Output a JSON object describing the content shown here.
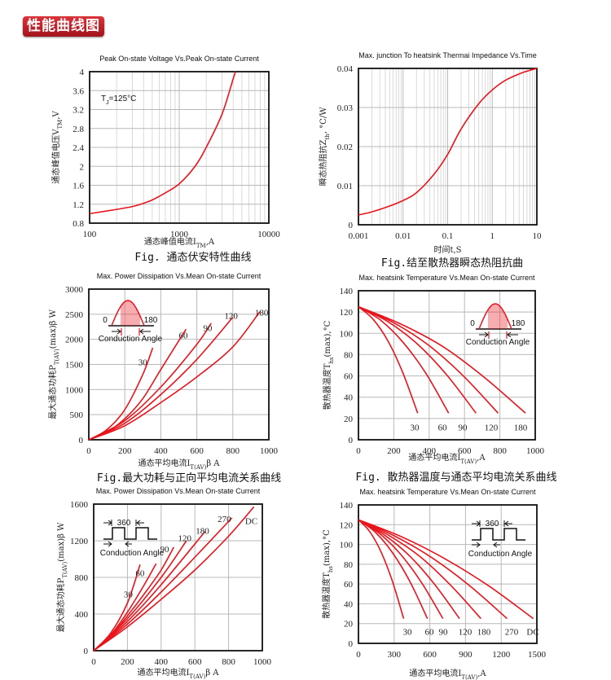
{
  "header": {
    "title": "性能曲线图"
  },
  "colors": {
    "curve": "#e8141c",
    "grid": "#b8b8b8",
    "badge": "#c0222a"
  },
  "chart_data": [
    {
      "type": "line",
      "title": "Peak On-state Voltage Vs.Peak On-state Current",
      "ylabel": {
        "main": "通态峰值电压V",
        "sub": "TM",
        "tail": ",V"
      },
      "xlabel": {
        "main": "通态峰值电流I",
        "sub": "TM",
        "tail": ",A"
      },
      "caption": "Fig. 通态伏安特性曲线",
      "annotation": {
        "main": "T",
        "sub": "J",
        "tail": "=125°C"
      },
      "xscale": "log",
      "xlim": [
        100,
        10000
      ],
      "ylim": [
        0.8,
        4
      ],
      "xticks": [
        "100",
        "1000",
        "10000"
      ],
      "yticks": [
        "0.8",
        "1.2",
        "1.6",
        "2",
        "2.4",
        "2.8",
        "3.2",
        "3.6",
        "4"
      ],
      "series": [
        {
          "name": "Tj=125°C",
          "label": "",
          "points": [
            [
              100,
              1.0
            ],
            [
              200,
              1.09
            ],
            [
              300,
              1.15
            ],
            [
              400,
              1.22
            ],
            [
              500,
              1.29
            ],
            [
              700,
              1.44
            ],
            [
              1000,
              1.63
            ],
            [
              1500,
              2.0
            ],
            [
              2000,
              2.4
            ],
            [
              3000,
              3.1
            ],
            [
              4000,
              3.85
            ],
            [
              4250,
              4.0
            ]
          ]
        }
      ]
    },
    {
      "type": "line",
      "title": "Max. junction To heatsink Thermai Impedance Vs.Time",
      "ylabel": {
        "main": "瞬态热阻抗Z",
        "sub": "th",
        "tail": ", °C/W"
      },
      "xlabel": {
        "main": "时间t,S",
        "sub": "",
        "tail": ""
      },
      "caption": "Fig.结至散热器瞬态热阻抗曲",
      "xscale": "log",
      "xlim": [
        0.001,
        10
      ],
      "ylim": [
        0,
        0.04
      ],
      "xticks": [
        "0.001",
        "0.01",
        "0.1",
        "1",
        "10"
      ],
      "yticks": [
        "0",
        "0.01",
        "0.02",
        "0.03",
        "0.04"
      ],
      "series": [
        {
          "name": "Zth",
          "label": "",
          "points": [
            [
              0.001,
              0.0025
            ],
            [
              0.002,
              0.0033
            ],
            [
              0.005,
              0.0048
            ],
            [
              0.01,
              0.0062
            ],
            [
              0.02,
              0.0082
            ],
            [
              0.05,
              0.013
            ],
            [
              0.1,
              0.018
            ],
            [
              0.2,
              0.0245
            ],
            [
              0.5,
              0.031
            ],
            [
              1,
              0.0345
            ],
            [
              2,
              0.037
            ],
            [
              5,
              0.039
            ],
            [
              10,
              0.04
            ]
          ]
        }
      ]
    },
    {
      "type": "line",
      "title": "Max. Power Dissipation Vs.Mean On-state Current",
      "ylabel": {
        "main": "最大通态功耗P",
        "sub": "T(AV)",
        "tail": "(max)β W"
      },
      "xlabel": {
        "main": "通态平均电流I",
        "sub": "T(AV)",
        "tail": "β A"
      },
      "caption": "Fig.最大功耗与正向平均电流关系曲线",
      "inset": {
        "kind": "sine",
        "left": "0",
        "right": "180",
        "text": "Conduction Angle"
      },
      "xscale": "linear",
      "xlim": [
        0,
        1000
      ],
      "ylim": [
        0,
        3000
      ],
      "xticks": [
        "0",
        "200",
        "400",
        "600",
        "800",
        "1000"
      ],
      "yticks": [
        "0",
        "500",
        "1000",
        "1500",
        "2000",
        "2500",
        "3000"
      ],
      "series": [
        {
          "name": "30",
          "label": "30",
          "label_at": [
            300,
            1550
          ],
          "points": [
            [
              0,
              0
            ],
            [
              100,
              200
            ],
            [
              200,
              600
            ],
            [
              300,
              1300
            ],
            [
              355,
              1830
            ]
          ]
        },
        {
          "name": "60",
          "label": "60",
          "label_at": [
            525,
            2080
          ],
          "points": [
            [
              0,
              0
            ],
            [
              100,
              150
            ],
            [
              200,
              420
            ],
            [
              300,
              820
            ],
            [
              400,
              1400
            ],
            [
              540,
              2200
            ]
          ]
        },
        {
          "name": "90",
          "label": "90",
          "label_at": [
            660,
            2230
          ],
          "points": [
            [
              0,
              0
            ],
            [
              200,
              380
            ],
            [
              400,
              1050
            ],
            [
              600,
              1900
            ],
            [
              680,
              2320
            ]
          ]
        },
        {
          "name": "120",
          "label": "120",
          "label_at": [
            790,
            2470
          ],
          "points": [
            [
              0,
              0
            ],
            [
              200,
              330
            ],
            [
              400,
              900
            ],
            [
              600,
              1600
            ],
            [
              800,
              2440
            ]
          ]
        },
        {
          "name": "180",
          "label": "180",
          "label_at": [
            960,
            2540
          ],
          "points": [
            [
              0,
              0
            ],
            [
              200,
              280
            ],
            [
              400,
              740
            ],
            [
              600,
              1250
            ],
            [
              800,
              1850
            ],
            [
              950,
              2550
            ]
          ]
        }
      ]
    },
    {
      "type": "line",
      "title": "Max. heatsink Temperature Vs.Mean On-state Current",
      "ylabel": {
        "main": "散热器温度T",
        "sub": "hs",
        "tail": "(max),°C"
      },
      "xlabel": {
        "main": "通态平均电流I",
        "sub": "T(AV)",
        "tail": ",A"
      },
      "caption": "Fig. 散热器温度与通态平均电流关系曲线",
      "inset": {
        "kind": "sine",
        "left": "0",
        "right": "180",
        "text": "Conduction Angle"
      },
      "xscale": "linear",
      "xlim": [
        0,
        1000
      ],
      "ylim": [
        0,
        140
      ],
      "xticks": [
        "0",
        "200",
        "400",
        "600",
        "800",
        "1000"
      ],
      "yticks": [
        "0",
        "20",
        "40",
        "60",
        "80",
        "100",
        "120",
        "140"
      ],
      "series": [
        {
          "name": "30",
          "label": "30",
          "label_at": [
            318,
            12
          ],
          "points": [
            [
              0,
              125
            ],
            [
              84,
              113
            ],
            [
              168,
              92.5
            ],
            [
              251,
              63
            ],
            [
              335,
              25
            ]
          ]
        },
        {
          "name": "60",
          "label": "60",
          "label_at": [
            475,
            12
          ],
          "points": [
            [
              0,
              125
            ],
            [
              128,
              112
            ],
            [
              255,
              91
            ],
            [
              383,
              62
            ],
            [
              510,
              25
            ]
          ]
        },
        {
          "name": "90",
          "label": "90",
          "label_at": [
            590,
            12
          ],
          "points": [
            [
              0,
              125
            ],
            [
              166,
              111
            ],
            [
              333,
              90
            ],
            [
              499,
              61
            ],
            [
              665,
              25
            ]
          ]
        },
        {
          "name": "120",
          "label": "120",
          "label_at": [
            751,
            12
          ],
          "points": [
            [
              0,
              125
            ],
            [
              198,
              110
            ],
            [
              395,
              89
            ],
            [
              593,
              60
            ],
            [
              790,
              25
            ]
          ]
        },
        {
          "name": "180",
          "label": "180",
          "label_at": [
            917,
            12
          ],
          "points": [
            [
              0,
              125
            ],
            [
              236,
              109
            ],
            [
              473,
              88
            ],
            [
              709,
              59
            ],
            [
              945,
              25
            ]
          ]
        }
      ]
    },
    {
      "type": "line",
      "title": "Max. Power Dissipation Vs.Mean On-state Current",
      "ylabel": {
        "main": "最大通态功耗P",
        "sub": "T(AV)",
        "tail": "(max)β W"
      },
      "xlabel": {
        "main": "通态平均电流I",
        "sub": "T(AV)",
        "tail": "β A"
      },
      "inset": {
        "kind": "square",
        "top": "360",
        "text": "Conduction Angle"
      },
      "xscale": "linear",
      "xlim": [
        0,
        1000
      ],
      "ylim": [
        0,
        1600
      ],
      "xticks": [
        "0",
        "200",
        "400",
        "600",
        "800",
        "1000"
      ],
      "yticks": [
        "0",
        "400",
        "800",
        "1200",
        "1600"
      ],
      "series": [
        {
          "name": "30",
          "label": "30",
          "label_at": [
            205,
            620
          ],
          "points": [
            [
              0,
              0
            ],
            [
              100,
              190
            ],
            [
              200,
              520
            ],
            [
              275,
              940
            ]
          ]
        },
        {
          "name": "60",
          "label": "60",
          "label_at": [
            275,
            850
          ],
          "points": [
            [
              0,
              0
            ],
            [
              100,
              170
            ],
            [
              200,
              420
            ],
            [
              300,
              720
            ],
            [
              370,
              950
            ]
          ]
        },
        {
          "name": "90",
          "label": "90",
          "label_at": [
            420,
            1110
          ],
          "points": [
            [
              0,
              0
            ],
            [
              100,
              160
            ],
            [
              200,
              380
            ],
            [
              300,
              620
            ],
            [
              400,
              880
            ],
            [
              475,
              1130
            ]
          ]
        },
        {
          "name": "120",
          "label": "120",
          "label_at": [
            540,
            1230
          ],
          "points": [
            [
              0,
              0
            ],
            [
              200,
              350
            ],
            [
              400,
              800
            ],
            [
              550,
              1200
            ]
          ]
        },
        {
          "name": "180",
          "label": "180",
          "label_at": [
            645,
            1310
          ],
          "points": [
            [
              0,
              0
            ],
            [
              200,
              320
            ],
            [
              400,
              720
            ],
            [
              660,
              1300
            ]
          ]
        },
        {
          "name": "270",
          "label": "270",
          "label_at": [
            775,
            1440
          ],
          "points": [
            [
              0,
              0
            ],
            [
              200,
              290
            ],
            [
              400,
              640
            ],
            [
              600,
              1020
            ],
            [
              820,
              1450
            ]
          ]
        },
        {
          "name": "DC",
          "label": "DC",
          "label_at": [
            935,
            1420
          ],
          "points": [
            [
              0,
              0
            ],
            [
              200,
              260
            ],
            [
              400,
              560
            ],
            [
              600,
              880
            ],
            [
              800,
              1250
            ],
            [
              950,
              1570
            ]
          ]
        }
      ]
    },
    {
      "type": "line",
      "title": "Max. heatsink Temperature Vs.Mean On-state Current",
      "ylabel": {
        "main": "散热器温度T",
        "sub": "hs",
        "tail": "(max),°C"
      },
      "xlabel": {
        "main": "通态平均电流I",
        "sub": "T(AV)",
        "tail": ",A"
      },
      "inset": {
        "kind": "square",
        "top": "360",
        "text": "Conduction Angle"
      },
      "xscale": "linear",
      "xlim": [
        0,
        1500
      ],
      "ylim": [
        0,
        140
      ],
      "xticks": [
        "0",
        "300",
        "600",
        "900",
        "1200",
        "1500"
      ],
      "yticks": [
        "0",
        "20",
        "40",
        "60",
        "80",
        "100",
        "120",
        "140"
      ],
      "series": [
        {
          "name": "30",
          "label": "30",
          "label_at": [
            411,
            12
          ],
          "points": [
            [
              0,
              125
            ],
            [
              95,
              113
            ],
            [
              190,
              92.5
            ],
            [
              285,
              63
            ],
            [
              380,
              25
            ]
          ]
        },
        {
          "name": "60",
          "label": "60",
          "label_at": [
            596,
            12
          ],
          "points": [
            [
              0,
              125
            ],
            [
              145,
              112
            ],
            [
              290,
              91
            ],
            [
              435,
              62
            ],
            [
              580,
              25
            ]
          ]
        },
        {
          "name": "90",
          "label": "90",
          "label_at": [
            712,
            12
          ],
          "points": [
            [
              0,
              125
            ],
            [
              178,
              111
            ],
            [
              355,
              90
            ],
            [
              533,
              61
            ],
            [
              710,
              25
            ]
          ]
        },
        {
          "name": "120",
          "label": "120",
          "label_at": [
            897,
            12
          ],
          "points": [
            [
              0,
              125
            ],
            [
              213,
              110
            ],
            [
              425,
              89
            ],
            [
              638,
              60
            ],
            [
              850,
              25
            ]
          ]
        },
        {
          "name": "180",
          "label": "180",
          "label_at": [
            1055,
            12
          ],
          "points": [
            [
              0,
              125
            ],
            [
              258,
              109
            ],
            [
              515,
              88
            ],
            [
              773,
              59
            ],
            [
              1030,
              25
            ]
          ]
        },
        {
          "name": "270",
          "label": "270",
          "label_at": [
            1288,
            12
          ],
          "points": [
            [
              0,
              125
            ],
            [
              313,
              108
            ],
            [
              625,
              86
            ],
            [
              938,
              58
            ],
            [
              1250,
              25
            ]
          ]
        },
        {
          "name": "DC",
          "label": "DC",
          "label_at": [
            1466,
            12
          ],
          "points": [
            [
              0,
              125
            ],
            [
              368,
              107.5
            ],
            [
              735,
              85
            ],
            [
              1103,
              57.5
            ],
            [
              1470,
              25
            ]
          ]
        }
      ]
    }
  ]
}
